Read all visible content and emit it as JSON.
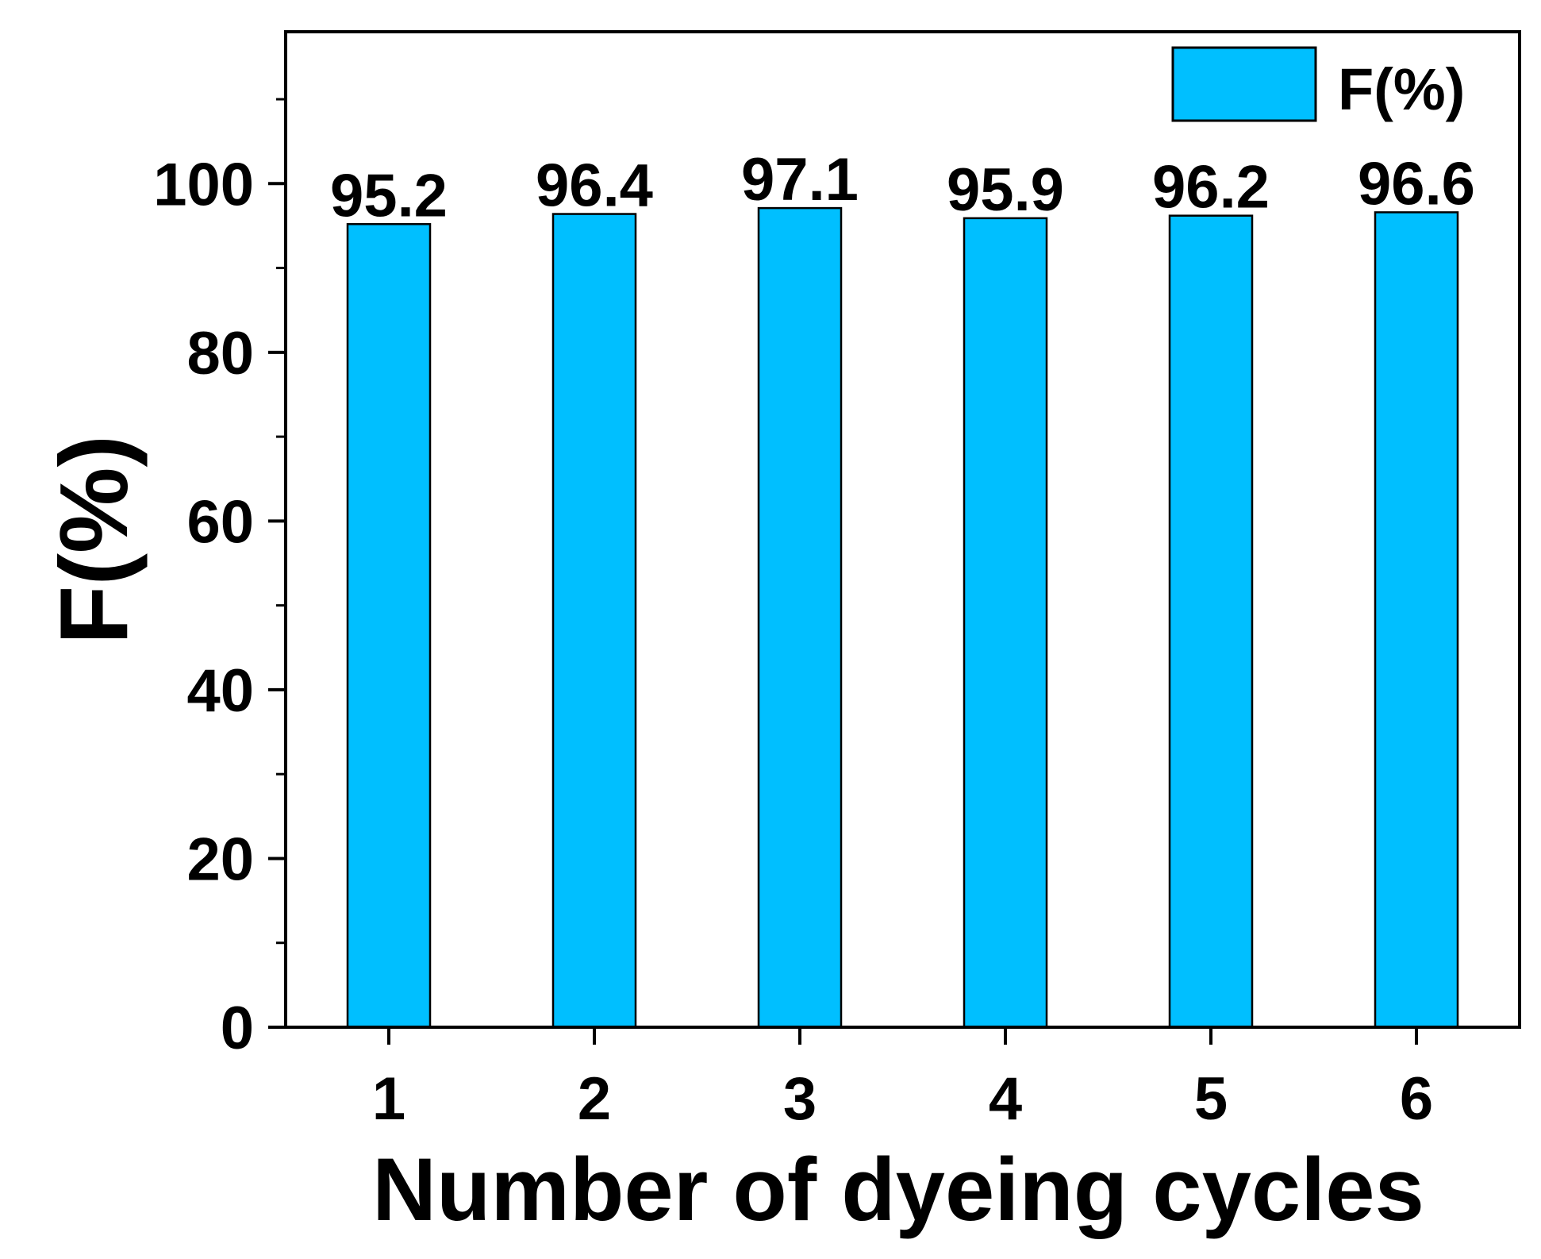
{
  "chart_data": {
    "type": "bar",
    "categories": [
      "1",
      "2",
      "3",
      "4",
      "5",
      "6"
    ],
    "series": [
      {
        "name": "F(%)",
        "values": [
          95.2,
          96.4,
          97.1,
          95.9,
          96.2,
          96.6
        ],
        "color": "#00BFFF"
      }
    ],
    "data_labels": [
      "95.2",
      "96.4",
      "97.1",
      "95.9",
      "96.2",
      "96.6"
    ],
    "xlabel": "Number of dyeing cycles",
    "ylabel": "F(%)",
    "ylim": [
      0,
      118
    ],
    "yticks": [
      0,
      20,
      40,
      60,
      80,
      100
    ],
    "ytick_labels": [
      "0",
      "20",
      "40",
      "60",
      "80",
      "100"
    ],
    "grid": false,
    "legend": {
      "entry": "F(%)",
      "placement": "top-right"
    }
  }
}
